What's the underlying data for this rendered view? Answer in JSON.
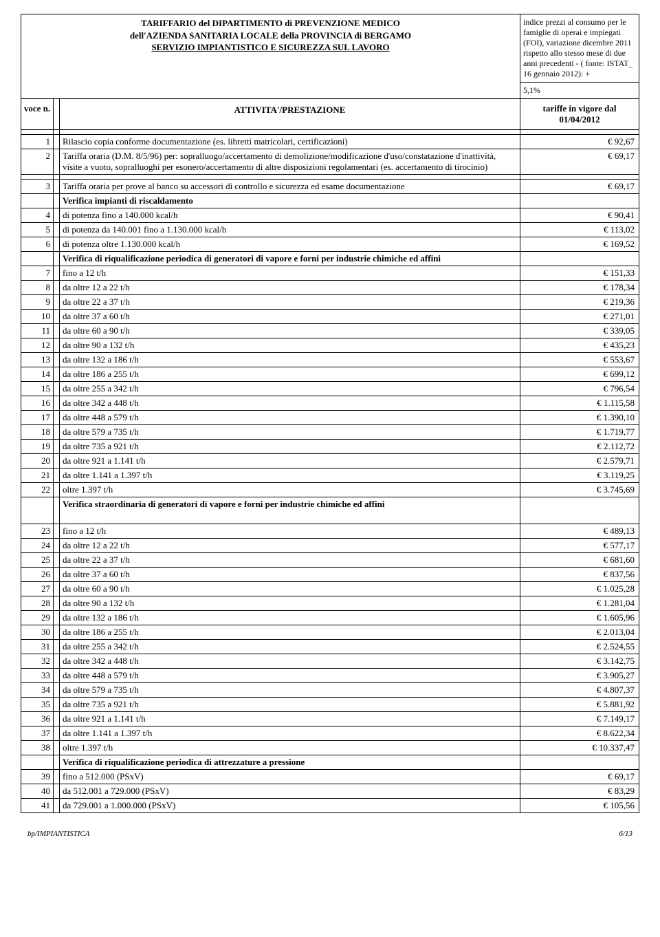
{
  "header": {
    "title_line1": "TARIFFARIO del DIPARTIMENTO di PREVENZIONE MEDICO",
    "title_line2": "dell'AZIENDA SANITARIA LOCALE della PROVINCIA di BERGAMO",
    "title_line3": "SERVIZIO IMPIANTISTICO E SICUREZZA SUL LAVORO",
    "note": "indice prezzi al consumo per le famiglie di operai e impiegati (FOI), variazione dicembre 2011 rispetto allo stesso mese di due anni precedenti - ( fonte: ISTAT_ 16 gennaio 2012): +",
    "percent": "5,1%",
    "col_voce": "voce n.",
    "col_attivita": "ATTIVITA'/PRESTAZIONE",
    "col_tariffe": "tariffe in vigore dal 01/04/2012"
  },
  "rows": [
    {
      "n": "1",
      "d": "Rilascio copia conforme documentazione (es. libretti matricolari, certificazioni)",
      "p": "€ 92,67"
    },
    {
      "n": "2",
      "d": "Tariffa oraria (D.M. 8/5/96) per: sopralluogo/accertamento di demolizione/modificazione d'uso/constatazione d'inattività, visite a vuoto, sopralluoghi per esonero/accertamento di altre disposizioni regolamentari (es. accertamento di tirocinio)",
      "p": "€ 69,17"
    },
    {
      "n": "3",
      "d": "Tariffa oraria per prove al banco su accessori di controllo e sicurezza ed esame documentazione",
      "p": "€ 69,17"
    },
    {
      "n": "",
      "d": "Verifica impianti di riscaldamento",
      "p": "",
      "bold": true
    },
    {
      "n": "4",
      "d": " di potenza fino a 140.000 kcal/h",
      "p": "€ 90,41"
    },
    {
      "n": "5",
      "d": " di potenza da 140.001 fino a 1.130.000 kcal/h",
      "p": "€ 113,02"
    },
    {
      "n": "6",
      "d": " di potenza oltre 1.130.000 kcal/h",
      "p": "€ 169,52"
    },
    {
      "n": "",
      "d": "Verifica di riqualificazione periodica di generatori di vapore e forni per industrie chimiche ed affini",
      "p": "",
      "bold": true
    },
    {
      "n": "7",
      "d": " fino a 12 t/h",
      "p": "€ 151,33"
    },
    {
      "n": "8",
      "d": " da oltre 12 a 22 t/h",
      "p": "€ 178,34"
    },
    {
      "n": "9",
      "d": " da oltre 22 a 37 t/h",
      "p": "€ 219,36"
    },
    {
      "n": "10",
      "d": " da oltre 37 a 60 t/h",
      "p": "€ 271,01"
    },
    {
      "n": "11",
      "d": " da oltre 60 a 90 t/h",
      "p": "€ 339,05"
    },
    {
      "n": "12",
      "d": " da oltre 90 a 132 t/h",
      "p": "€ 435,23"
    },
    {
      "n": "13",
      "d": " da oltre 132 a 186 t/h",
      "p": "€ 553,67"
    },
    {
      "n": "14",
      "d": " da oltre 186 a 255 t/h",
      "p": "€ 699,12"
    },
    {
      "n": "15",
      "d": " da oltre 255 a 342 t/h",
      "p": "€ 796,54"
    },
    {
      "n": "16",
      "d": " da oltre 342 a 448 t/h",
      "p": "€ 1.115,58"
    },
    {
      "n": "17",
      "d": " da oltre 448 a 579 t/h",
      "p": "€ 1.390,10"
    },
    {
      "n": "18",
      "d": " da oltre 579 a 735 t/h",
      "p": "€ 1.719,77"
    },
    {
      "n": "19",
      "d": " da oltre 735 a 921 t/h",
      "p": "€ 2.112,72"
    },
    {
      "n": "20",
      "d": " da oltre 921 a 1.141 t/h",
      "p": "€ 2.579,71"
    },
    {
      "n": "21",
      "d": " da oltre 1.141 a 1.397 t/h",
      "p": "€ 3.119,25"
    },
    {
      "n": "22",
      "d": " oltre 1.397 t/h",
      "p": "€ 3.745,69"
    },
    {
      "n": "",
      "d": "Verifica straordinaria di generatori di vapore e forni per industrie chimiche ed affini",
      "p": "",
      "bold": true,
      "tall": true
    },
    {
      "n": "23",
      "d": " fino a 12 t/h",
      "p": "€ 489,13"
    },
    {
      "n": "24",
      "d": " da oltre 12 a 22 t/h",
      "p": "€ 577,17"
    },
    {
      "n": "25",
      "d": " da oltre 22 a 37 t/h",
      "p": "€ 681,60"
    },
    {
      "n": "26",
      "d": " da oltre 37 a 60 t/h",
      "p": "€ 837,56"
    },
    {
      "n": "27",
      "d": " da oltre 60 a 90 t/h",
      "p": "€ 1.025,28"
    },
    {
      "n": "28",
      "d": " da oltre 90 a 132 t/h",
      "p": "€ 1.281,04"
    },
    {
      "n": "29",
      "d": " da oltre 132  a 186 t/h",
      "p": "€ 1.605,96"
    },
    {
      "n": "30",
      "d": " da oltre 186  a 255 t/h",
      "p": "€ 2.013,04"
    },
    {
      "n": "31",
      "d": " da oltre 255  a 342 t/h",
      "p": "€ 2.524,55"
    },
    {
      "n": "32",
      "d": " da oltre 342  a 448 t/h",
      "p": "€ 3.142,75"
    },
    {
      "n": "33",
      "d": " da oltre 448  a 579 t/h",
      "p": "€ 3.905,27"
    },
    {
      "n": "34",
      "d": " da oltre 579  a 735 t/h",
      "p": "€ 4.807,37"
    },
    {
      "n": "35",
      "d": " da oltre 735  a 921 t/h",
      "p": "€ 5.881,92"
    },
    {
      "n": "36",
      "d": " da oltre 921  a 1.141 t/h",
      "p": "€ 7.149,17"
    },
    {
      "n": "37",
      "d": " da oltre 1.141 a 1.397 t/h",
      "p": "€ 8.622,34"
    },
    {
      "n": "38",
      "d": " oltre 1.397 t/h",
      "p": "€ 10.337,47"
    },
    {
      "n": "",
      "d": "Verifica di riqualificazione periodica di attrezzature a pressione",
      "p": "",
      "bold": true
    },
    {
      "n": "39",
      "d": " fino a 512.000  (PSxV)",
      "p": "€ 69,17"
    },
    {
      "n": "40",
      "d": " da 512.001 a 729.000 (PSxV)",
      "p": "€ 83,29"
    },
    {
      "n": "41",
      "d": " da 729.001 a 1.000.000 (PSxV)",
      "p": "€ 105,56"
    }
  ],
  "footer": {
    "left": "bp/IMPIANTISTICA",
    "right": "6/13"
  }
}
